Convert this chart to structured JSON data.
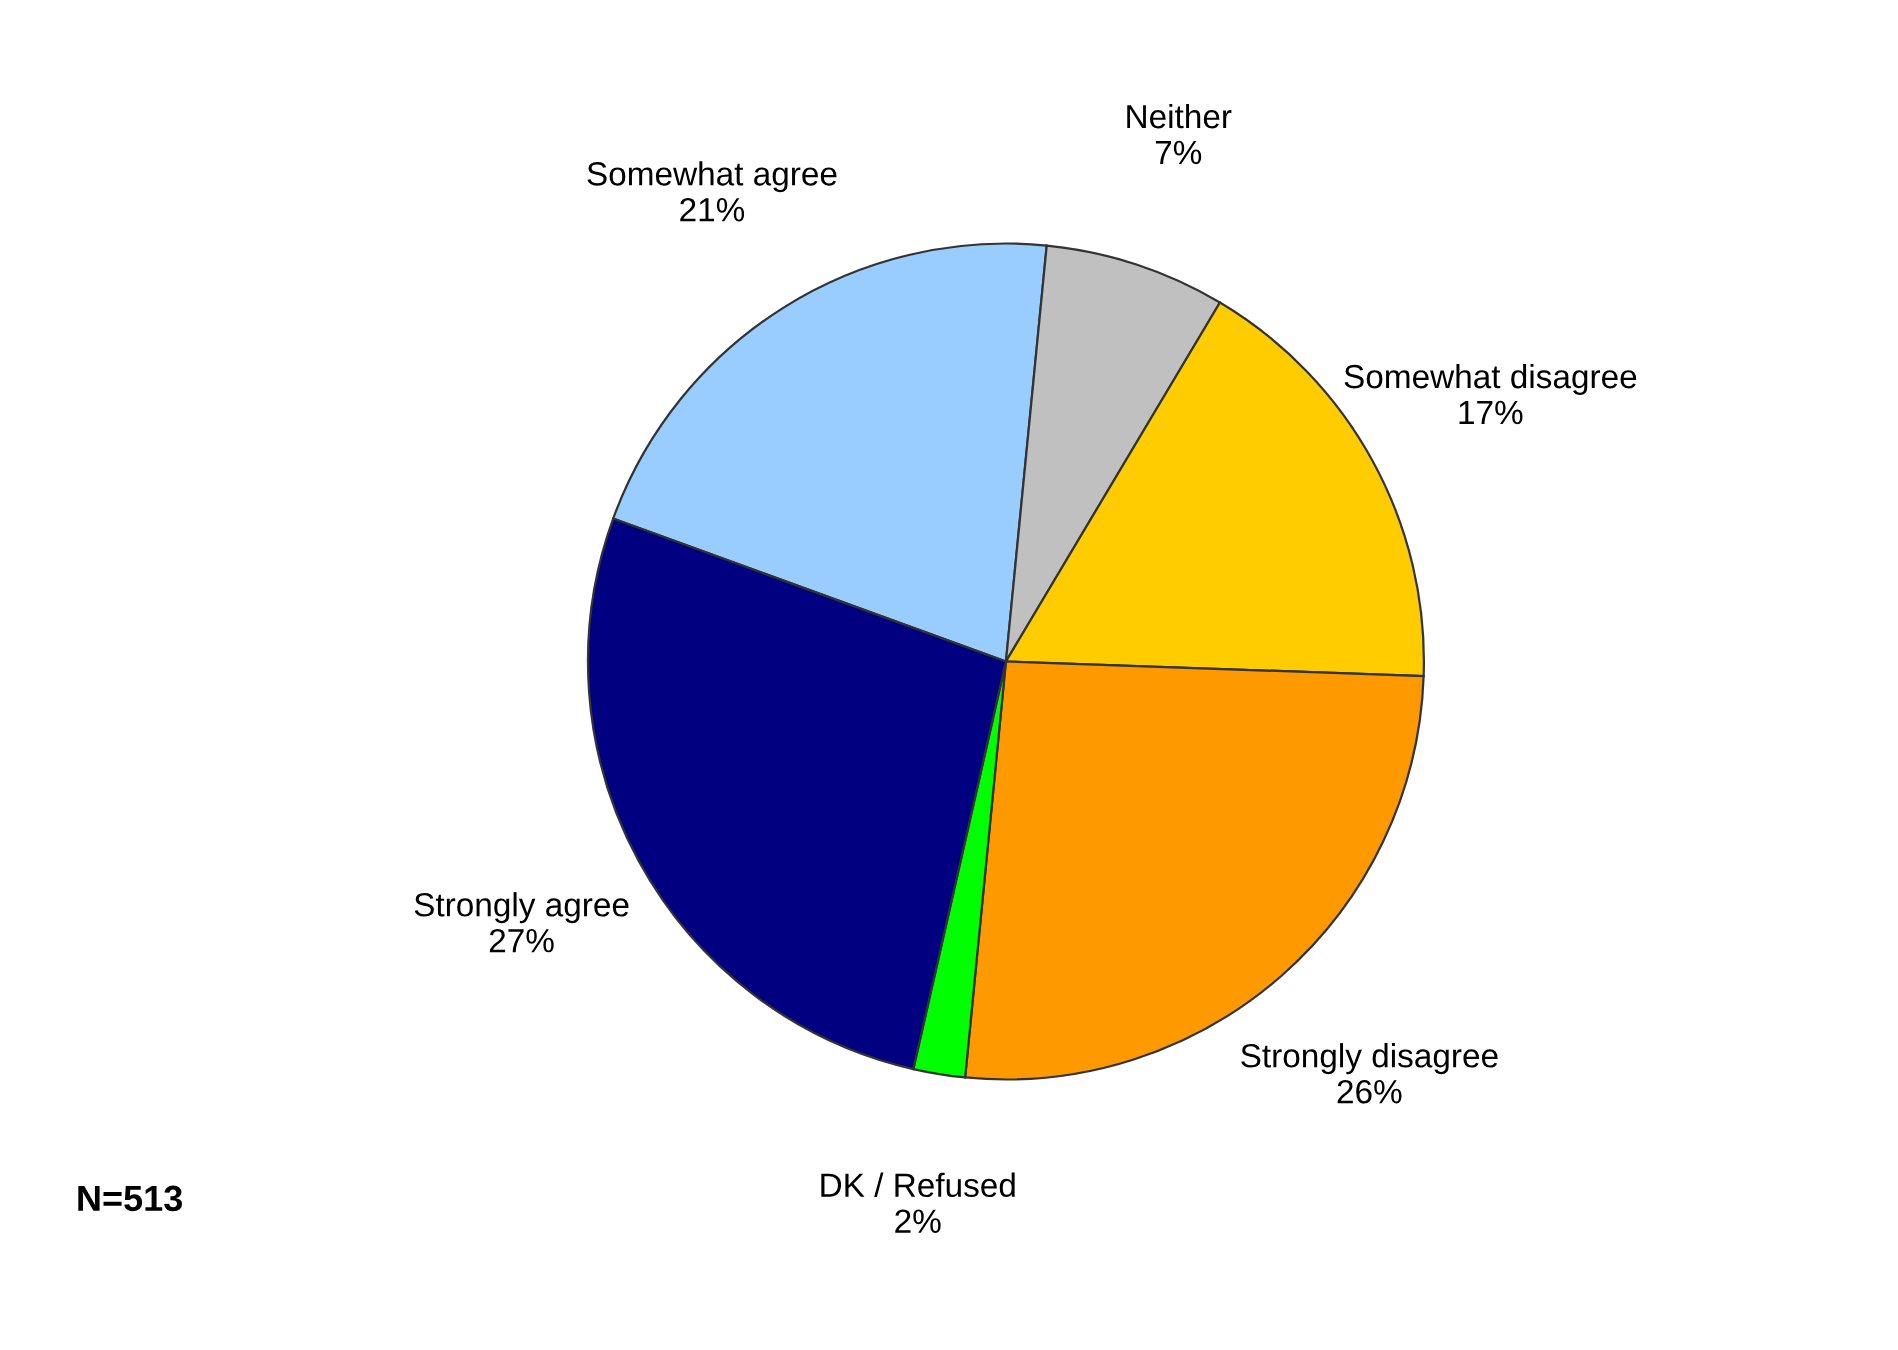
{
  "chart_data": {
    "type": "pie",
    "categories": [
      "Somewhat agree",
      "Neither",
      "Somewhat disagree",
      "Strongly disagree",
      "DK / Refused",
      "Strongly agree"
    ],
    "values": [
      21,
      7,
      17,
      26,
      2,
      27
    ],
    "value_labels": [
      "21%",
      "7%",
      "17%",
      "26%",
      "2%",
      "27%"
    ],
    "colors": [
      "#99ccff",
      "#c0c0c0",
      "#ffcc00",
      "#ff9900",
      "#00ff00",
      "#000080"
    ],
    "legend": false,
    "annotations": [
      "N=513"
    ]
  }
}
